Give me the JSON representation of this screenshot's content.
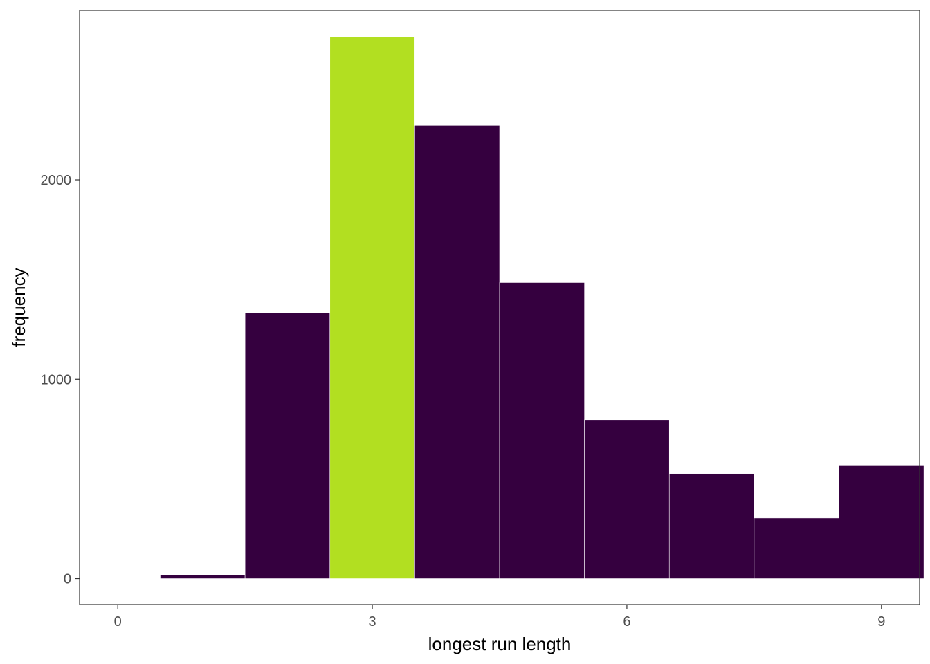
{
  "chart_data": {
    "type": "bar",
    "title": "",
    "xlabel": "longest run length",
    "ylabel": "frequency",
    "x": [
      1,
      2,
      3,
      4,
      5,
      6,
      7,
      8,
      9
    ],
    "values": [
      17,
      1332,
      2716,
      2273,
      1485,
      797,
      526,
      304,
      566
    ],
    "highlight_x": 3,
    "xlim": [
      -0.45,
      9.45
    ],
    "ylim": [
      -130,
      2850
    ],
    "x_ticks": [
      0,
      3,
      6,
      9
    ],
    "y_ticks": [
      0,
      1000,
      2000
    ],
    "grid": false,
    "legend": "none",
    "colors": {
      "bar": "#35003f",
      "highlight": "#b2df21",
      "bar_outline": "#ffffff",
      "panel_border": "#333333",
      "tick_text": "#4d4d4d"
    }
  }
}
